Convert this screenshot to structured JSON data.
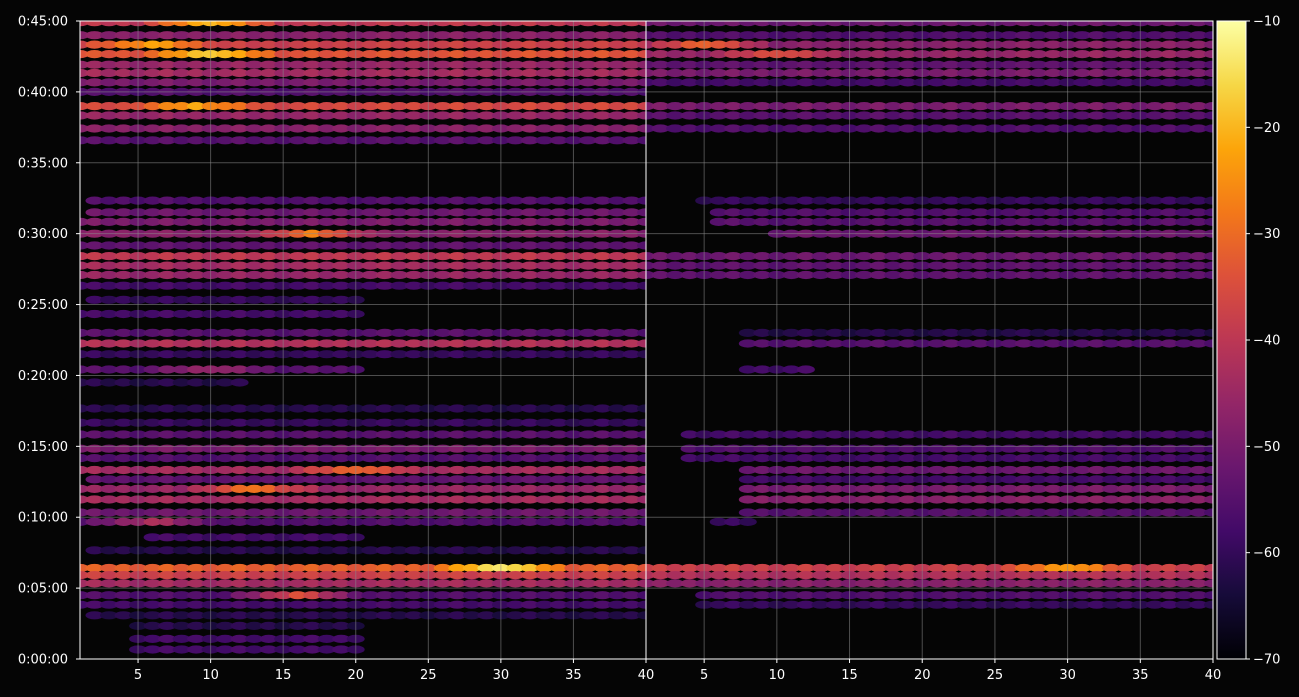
{
  "chart_data": {
    "type": "heatmap",
    "title": "",
    "xlabel": "",
    "ylabel": "",
    "colormap": "inferno",
    "background": "#050505",
    "y_axis": {
      "range": [
        "0:00:00",
        "0:45:00"
      ],
      "range_seconds": [
        0,
        2700
      ],
      "tick_labels": [
        "0:00:00",
        "0:05:00",
        "0:10:00",
        "0:15:00",
        "0:20:00",
        "0:25:00",
        "0:30:00",
        "0:35:00",
        "0:40:00",
        "0:45:00"
      ],
      "tick_values_seconds": [
        0,
        300,
        600,
        900,
        1200,
        1500,
        1800,
        2100,
        2400,
        2700
      ]
    },
    "colorbar": {
      "range": [
        -70,
        -10
      ],
      "tick_values": [
        -70,
        -60,
        -50,
        -40,
        -30,
        -20,
        -10
      ],
      "tick_labels": [
        "−70",
        "−60",
        "−50",
        "−40",
        "−30",
        "−20",
        "−10"
      ]
    },
    "grid": true,
    "panels": [
      {
        "x_range": [
          1,
          40
        ],
        "x_tick_values": [
          5,
          10,
          15,
          20,
          25,
          30,
          35,
          40
        ],
        "x_tick_labels": [
          "5",
          "10",
          "15",
          "20",
          "25",
          "30",
          "35",
          "40"
        ],
        "bands": [
          {
            "t": 2695,
            "x": [
              1,
              40
            ],
            "db": -40,
            "peak_x": 10,
            "peak_db": -18
          },
          {
            "t": 2640,
            "x": [
              1,
              40
            ],
            "db": -48
          },
          {
            "t": 2600,
            "x": [
              1,
              40
            ],
            "db": -38,
            "peak_x": 6,
            "peak_db": -22
          },
          {
            "t": 2560,
            "x": [
              1,
              40
            ],
            "db": -34,
            "peak_x": 10,
            "peak_db": -16
          },
          {
            "t": 2515,
            "x": [
              1,
              40
            ],
            "db": -46
          },
          {
            "t": 2480,
            "x": [
              1,
              40
            ],
            "db": -44
          },
          {
            "t": 2440,
            "x": [
              1,
              40
            ],
            "db": -50
          },
          {
            "t": 2400,
            "x": [
              1,
              40
            ],
            "db": -56
          },
          {
            "t": 2340,
            "x": [
              1,
              40
            ],
            "db": -36,
            "peak_x": 9,
            "peak_db": -22
          },
          {
            "t": 2300,
            "x": [
              1,
              40
            ],
            "db": -46
          },
          {
            "t": 2245,
            "x": [
              1,
              40
            ],
            "db": -48
          },
          {
            "t": 2195,
            "x": [
              1,
              40
            ],
            "db": -55
          },
          {
            "t": 1940,
            "x": [
              2,
              40
            ],
            "db": -56
          },
          {
            "t": 1890,
            "x": [
              2,
              40
            ],
            "db": -52
          },
          {
            "t": 1850,
            "x": [
              1,
              40
            ],
            "db": -50
          },
          {
            "t": 1800,
            "x": [
              1,
              40
            ],
            "db": -48,
            "peak_x": 17,
            "peak_db": -28
          },
          {
            "t": 1750,
            "x": [
              1,
              40
            ],
            "db": -54
          },
          {
            "t": 1705,
            "x": [
              1,
              40
            ],
            "db": -40
          },
          {
            "t": 1665,
            "x": [
              1,
              40
            ],
            "db": -44
          },
          {
            "t": 1625,
            "x": [
              1,
              40
            ],
            "db": -46
          },
          {
            "t": 1580,
            "x": [
              1,
              40
            ],
            "db": -58
          },
          {
            "t": 1520,
            "x": [
              2,
              20
            ],
            "db": -60
          },
          {
            "t": 1460,
            "x": [
              1,
              20
            ],
            "db": -58
          },
          {
            "t": 1380,
            "x": [
              1,
              40
            ],
            "db": -55
          },
          {
            "t": 1335,
            "x": [
              1,
              40
            ],
            "db": -42
          },
          {
            "t": 1290,
            "x": [
              1,
              40
            ],
            "db": -60
          },
          {
            "t": 1225,
            "x": [
              1,
              20
            ],
            "db": -55,
            "peak_x": 10,
            "peak_db": -45
          },
          {
            "t": 1170,
            "x": [
              1,
              12
            ],
            "db": -62
          },
          {
            "t": 1060,
            "x": [
              1,
              40
            ],
            "db": -62
          },
          {
            "t": 1000,
            "x": [
              1,
              40
            ],
            "db": -60
          },
          {
            "t": 950,
            "x": [
              1,
              40
            ],
            "db": -55
          },
          {
            "t": 890,
            "x": [
              1,
              40
            ],
            "db": -50
          },
          {
            "t": 850,
            "x": [
              1,
              40
            ],
            "db": -56
          },
          {
            "t": 800,
            "x": [
              1,
              40
            ],
            "db": -44,
            "peak_x": 20,
            "peak_db": -30
          },
          {
            "t": 760,
            "x": [
              2,
              40
            ],
            "db": -54
          },
          {
            "t": 720,
            "x": [
              1,
              40
            ],
            "db": -46,
            "peak_x": 13,
            "peak_db": -28
          },
          {
            "t": 675,
            "x": [
              1,
              40
            ],
            "db": -44
          },
          {
            "t": 620,
            "x": [
              1,
              40
            ],
            "db": -52
          },
          {
            "t": 580,
            "x": [
              1,
              40
            ],
            "db": -56,
            "peak_x": 6,
            "peak_db": -42
          },
          {
            "t": 515,
            "x": [
              6,
              20
            ],
            "db": -58
          },
          {
            "t": 460,
            "x": [
              2,
              40
            ],
            "db": -62
          },
          {
            "t": 385,
            "x": [
              1,
              40
            ],
            "db": -32,
            "peak_x": 30,
            "peak_db": -12
          },
          {
            "t": 355,
            "x": [
              1,
              40
            ],
            "db": -38
          },
          {
            "t": 320,
            "x": [
              1,
              40
            ],
            "db": -44
          },
          {
            "t": 270,
            "x": [
              1,
              40
            ],
            "db": -56,
            "peak_x": 16,
            "peak_db": -34
          },
          {
            "t": 230,
            "x": [
              1,
              40
            ],
            "db": -58
          },
          {
            "t": 185,
            "x": [
              2,
              40
            ],
            "db": -62
          },
          {
            "t": 140,
            "x": [
              5,
              20
            ],
            "db": -62
          },
          {
            "t": 85,
            "x": [
              5,
              20
            ],
            "db": -58
          },
          {
            "t": 40,
            "x": [
              5,
              20
            ],
            "db": -58
          }
        ]
      },
      {
        "x_range": [
          1,
          40
        ],
        "x_tick_values": [
          5,
          10,
          15,
          20,
          25,
          30,
          35,
          40
        ],
        "x_tick_labels": [
          "5",
          "10",
          "15",
          "20",
          "25",
          "30",
          "35",
          "40"
        ],
        "bands": [
          {
            "t": 2695,
            "x": [
              1,
              40
            ],
            "db": -52
          },
          {
            "t": 2640,
            "x": [
              1,
              40
            ],
            "db": -56
          },
          {
            "t": 2600,
            "x": [
              1,
              40
            ],
            "db": -48,
            "peak_x": 5,
            "peak_db": -30
          },
          {
            "t": 2560,
            "x": [
              1,
              40
            ],
            "db": -46,
            "peak_x": 10,
            "peak_db": -34
          },
          {
            "t": 2515,
            "x": [
              1,
              40
            ],
            "db": -54
          },
          {
            "t": 2480,
            "x": [
              1,
              40
            ],
            "db": -50
          },
          {
            "t": 2440,
            "x": [
              1,
              40
            ],
            "db": -58
          },
          {
            "t": 2340,
            "x": [
              1,
              40
            ],
            "db": -50
          },
          {
            "t": 2300,
            "x": [
              1,
              40
            ],
            "db": -55
          },
          {
            "t": 2245,
            "x": [
              1,
              40
            ],
            "db": -56
          },
          {
            "t": 1940,
            "x": [
              5,
              40
            ],
            "db": -60
          },
          {
            "t": 1890,
            "x": [
              6,
              40
            ],
            "db": -56
          },
          {
            "t": 1850,
            "x": [
              6,
              40
            ],
            "db": -55
          },
          {
            "t": 1800,
            "x": [
              10,
              40
            ],
            "db": -52
          },
          {
            "t": 1705,
            "x": [
              1,
              40
            ],
            "db": -52
          },
          {
            "t": 1665,
            "x": [
              1,
              40
            ],
            "db": -54
          },
          {
            "t": 1625,
            "x": [
              1,
              40
            ],
            "db": -54
          },
          {
            "t": 1380,
            "x": [
              8,
              40
            ],
            "db": -62
          },
          {
            "t": 1335,
            "x": [
              8,
              40
            ],
            "db": -55
          },
          {
            "t": 1225,
            "x": [
              8,
              12
            ],
            "db": -58
          },
          {
            "t": 950,
            "x": [
              4,
              40
            ],
            "db": -58
          },
          {
            "t": 890,
            "x": [
              4,
              40
            ],
            "db": -56
          },
          {
            "t": 850,
            "x": [
              4,
              40
            ],
            "db": -58
          },
          {
            "t": 800,
            "x": [
              8,
              40
            ],
            "db": -52
          },
          {
            "t": 760,
            "x": [
              8,
              40
            ],
            "db": -58
          },
          {
            "t": 720,
            "x": [
              8,
              40
            ],
            "db": -50
          },
          {
            "t": 675,
            "x": [
              8,
              40
            ],
            "db": -48
          },
          {
            "t": 620,
            "x": [
              8,
              40
            ],
            "db": -55
          },
          {
            "t": 580,
            "x": [
              6,
              8
            ],
            "db": -60
          },
          {
            "t": 385,
            "x": [
              1,
              40
            ],
            "db": -38,
            "peak_x": 30,
            "peak_db": -22
          },
          {
            "t": 355,
            "x": [
              1,
              40
            ],
            "db": -42
          },
          {
            "t": 320,
            "x": [
              1,
              40
            ],
            "db": -48
          },
          {
            "t": 270,
            "x": [
              5,
              40
            ],
            "db": -56
          },
          {
            "t": 230,
            "x": [
              5,
              40
            ],
            "db": -60
          }
        ]
      }
    ]
  }
}
